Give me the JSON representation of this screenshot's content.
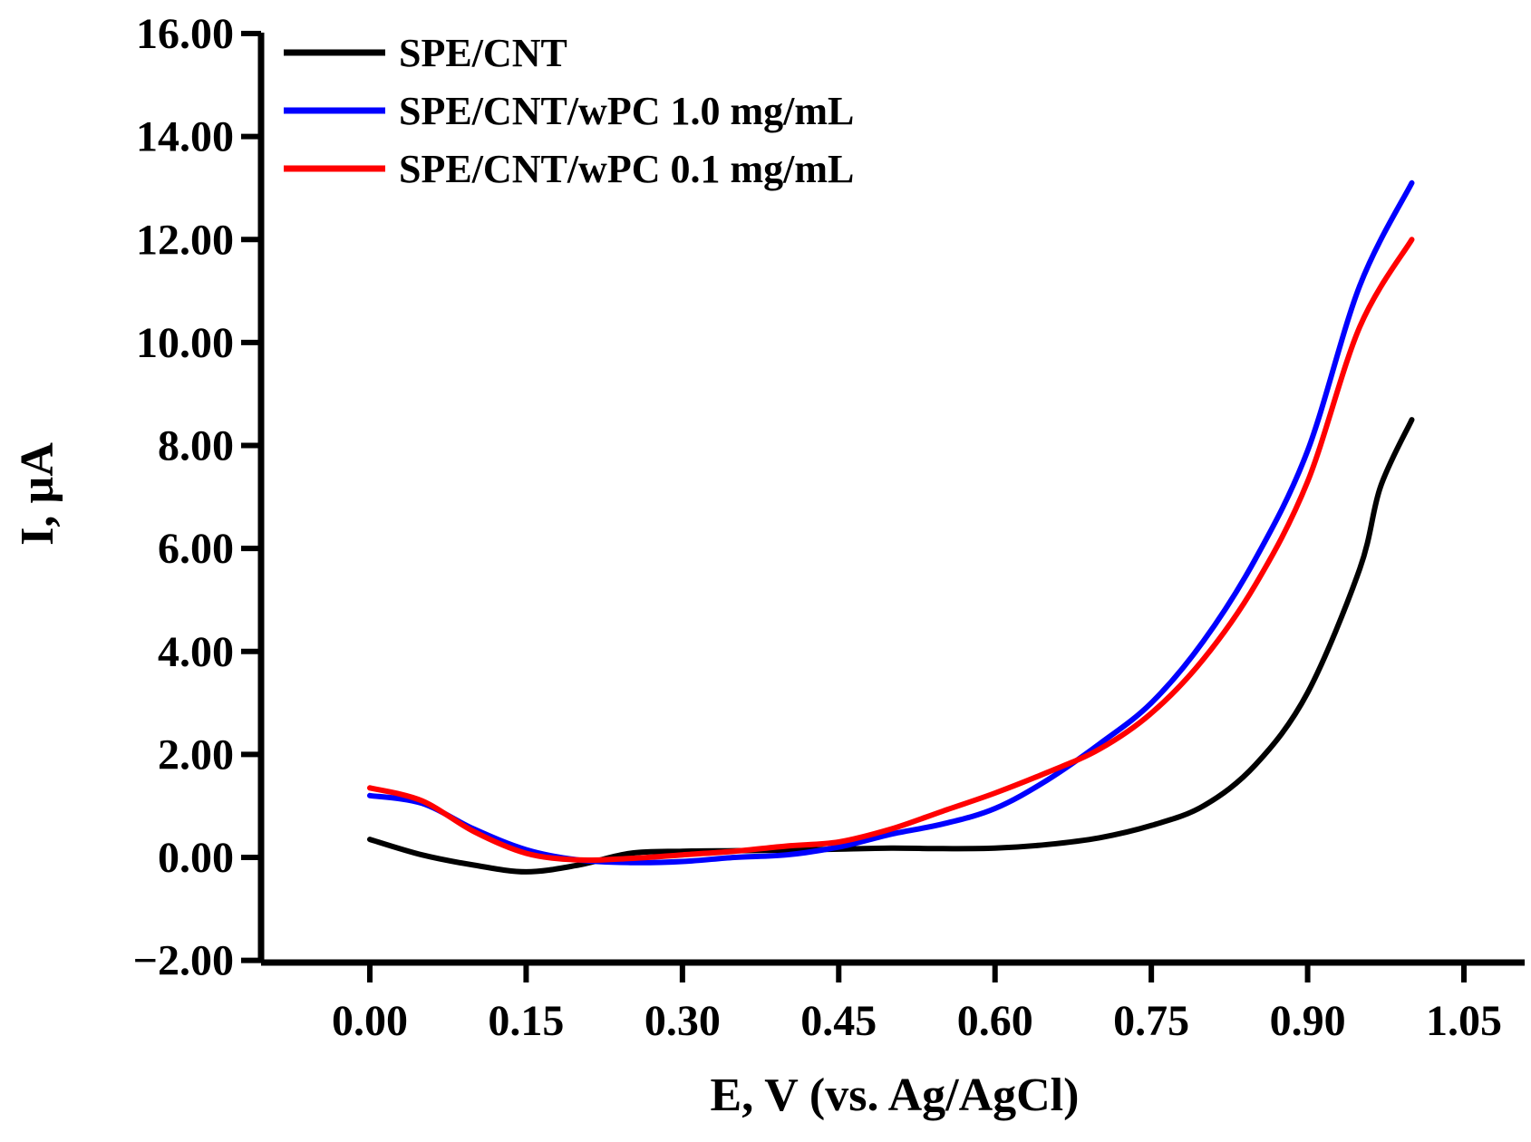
{
  "chart_data": {
    "type": "line",
    "title": "",
    "xlabel": "E, V (vs. Ag/AgCl)",
    "ylabel": "I, µA",
    "xlim": [
      -0.1,
      1.06
    ],
    "ylim": [
      -2.0,
      16.0
    ],
    "xticks": [
      0.0,
      0.15,
      0.3,
      0.45,
      0.6,
      0.75,
      0.9,
      1.05
    ],
    "xtick_labels": [
      "0.00",
      "0.15",
      "0.30",
      "0.45",
      "0.60",
      "0.75",
      "0.90",
      "1.05"
    ],
    "yticks": [
      -2.0,
      0.0,
      2.0,
      4.0,
      6.0,
      8.0,
      10.0,
      12.0,
      14.0,
      16.0
    ],
    "ytick_labels": [
      "−2.00",
      "0.00",
      "2.00",
      "4.00",
      "6.00",
      "8.00",
      "10.00",
      "12.00",
      "14.00",
      "16.00"
    ],
    "grid": false,
    "legend_position": "top-left",
    "series": [
      {
        "name": "SPE/CNT",
        "color": "#000000",
        "x": [
          0.0,
          0.05,
          0.1,
          0.15,
          0.2,
          0.25,
          0.3,
          0.35,
          0.4,
          0.45,
          0.5,
          0.55,
          0.6,
          0.65,
          0.7,
          0.75,
          0.8,
          0.85,
          0.9,
          0.95,
          0.97,
          1.0
        ],
        "y": [
          0.35,
          0.05,
          -0.15,
          -0.28,
          -0.15,
          0.08,
          0.12,
          0.13,
          0.14,
          0.16,
          0.18,
          0.17,
          0.18,
          0.25,
          0.38,
          0.62,
          1.0,
          1.8,
          3.2,
          5.6,
          7.2,
          8.5
        ]
      },
      {
        "name": "SPE/CNT/wPC 1.0 mg/mL",
        "color": "#0000ff",
        "x": [
          0.0,
          0.05,
          0.1,
          0.15,
          0.2,
          0.25,
          0.3,
          0.35,
          0.4,
          0.45,
          0.5,
          0.55,
          0.6,
          0.65,
          0.7,
          0.75,
          0.8,
          0.85,
          0.9,
          0.95,
          1.0
        ],
        "y": [
          1.2,
          1.05,
          0.55,
          0.15,
          -0.05,
          -0.1,
          -0.08,
          0.0,
          0.05,
          0.2,
          0.45,
          0.65,
          0.95,
          1.5,
          2.2,
          3.0,
          4.2,
          5.8,
          7.9,
          11.1,
          13.1
        ]
      },
      {
        "name": "SPE/CNT/wPC 0.1 mg/mL",
        "color": "#ff0000",
        "x": [
          0.0,
          0.05,
          0.1,
          0.15,
          0.2,
          0.25,
          0.3,
          0.35,
          0.4,
          0.45,
          0.5,
          0.55,
          0.6,
          0.65,
          0.7,
          0.75,
          0.8,
          0.85,
          0.9,
          0.95,
          1.0
        ],
        "y": [
          1.35,
          1.1,
          0.5,
          0.08,
          -0.05,
          -0.02,
          0.05,
          0.12,
          0.22,
          0.3,
          0.55,
          0.9,
          1.25,
          1.65,
          2.1,
          2.8,
          3.85,
          5.3,
          7.3,
          10.3,
          12.0
        ]
      }
    ]
  }
}
